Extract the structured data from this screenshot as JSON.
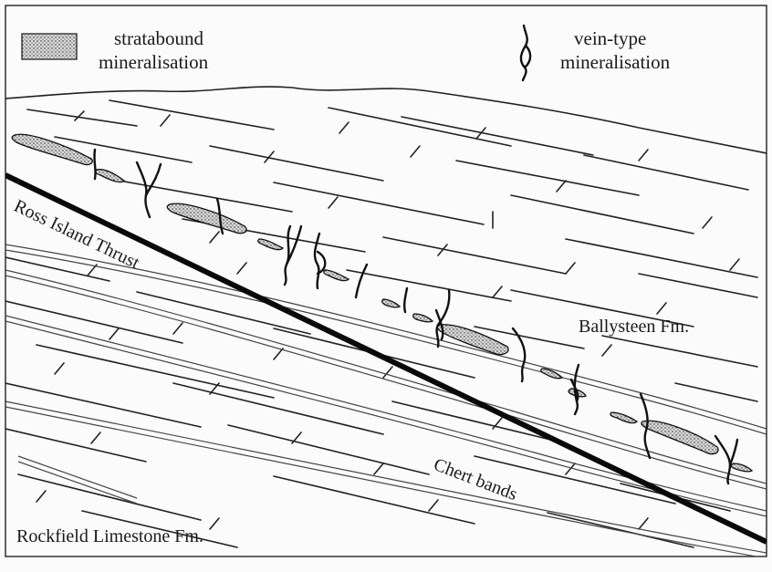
{
  "legend": {
    "stratabound_line1": "stratabound",
    "stratabound_line2": "mineralisation",
    "vein_line1": "vein-type",
    "vein_line2": "mineralisation"
  },
  "labels": {
    "thrust": "Ross Island Thrust",
    "ballysteen": "Ballysteen Fm.",
    "chert": "Chert bands",
    "rockfield": "Rockfield Limestone Fm."
  },
  "colors": {
    "ink": "#111111",
    "paper": "#fbfbfb",
    "stipple_bg": "#d8d8d8"
  }
}
